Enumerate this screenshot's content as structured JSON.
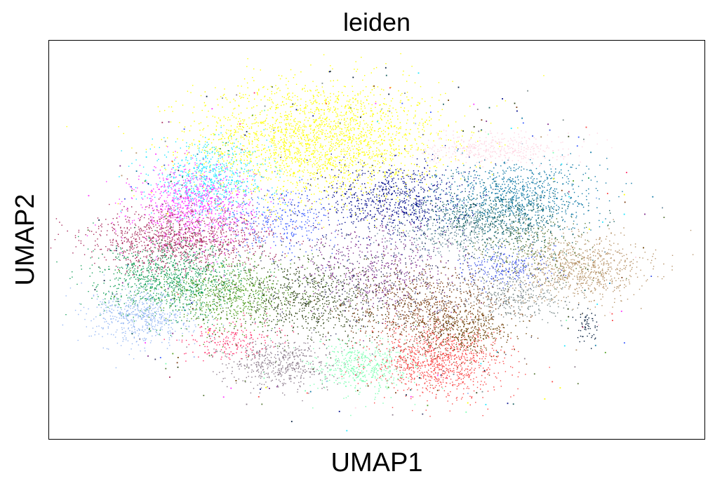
{
  "chart_data": {
    "type": "scatter",
    "title": "leiden",
    "xlabel": "UMAP1",
    "ylabel": "UMAP2",
    "xlim": [
      0,
      100
    ],
    "ylim": [
      0,
      100
    ],
    "grid": false,
    "legend": "none",
    "ticks": "none",
    "clusters": [
      {
        "color": "#ffff00",
        "center": [
          41.0,
          75.0
        ],
        "spread": [
          9.5,
          7.5
        ],
        "count": 2400
      },
      {
        "color": "#1ce6ff",
        "center": [
          24.5,
          65.0
        ],
        "spread": [
          4.5,
          4.5
        ],
        "count": 700
      },
      {
        "color": "#ff34ff",
        "center": [
          22.0,
          58.5
        ],
        "spread": [
          4.5,
          5.0
        ],
        "count": 900
      },
      {
        "color": "#3b5dff",
        "center": [
          35.0,
          55.0
        ],
        "spread": [
          4.5,
          4.0
        ],
        "count": 350
      },
      {
        "color": "#000a8a",
        "center": [
          53.0,
          60.0
        ],
        "spread": [
          5.5,
          5.0
        ],
        "count": 800
      },
      {
        "color": "#0e78a5",
        "center": [
          71.0,
          61.0
        ],
        "spread": [
          6.0,
          4.5
        ],
        "count": 900
      },
      {
        "color": "#135d5d",
        "center": [
          68.0,
          55.0
        ],
        "spread": [
          5.5,
          3.5
        ],
        "count": 600
      },
      {
        "color": "#ffd5e2",
        "center": [
          68.0,
          73.0
        ],
        "spread": [
          5.5,
          2.0
        ],
        "count": 400
      },
      {
        "color": "#a6285a",
        "center": [
          20.0,
          50.0
        ],
        "spread": [
          7.0,
          4.0
        ],
        "count": 1200
      },
      {
        "color": "#16a05a",
        "center": [
          18.5,
          40.0
        ],
        "spread": [
          5.5,
          4.5
        ],
        "count": 1000
      },
      {
        "color": "#98b9f4",
        "center": [
          14.5,
          31.0
        ],
        "spread": [
          4.0,
          3.5
        ],
        "count": 600
      },
      {
        "color": "#4e9c1c",
        "center": [
          28.0,
          36.0
        ],
        "spread": [
          5.0,
          4.5
        ],
        "count": 700
      },
      {
        "color": "#2b4010",
        "center": [
          40.0,
          35.0
        ],
        "spread": [
          6.0,
          5.0
        ],
        "count": 700
      },
      {
        "color": "#ff2e6a",
        "center": [
          27.5,
          25.0
        ],
        "spread": [
          3.5,
          2.5
        ],
        "count": 200
      },
      {
        "color": "#8a7a8a",
        "center": [
          35.5,
          19.0
        ],
        "spread": [
          4.0,
          3.0
        ],
        "count": 500
      },
      {
        "color": "#7dffb2",
        "center": [
          47.5,
          18.0
        ],
        "spread": [
          4.0,
          3.5
        ],
        "count": 500
      },
      {
        "color": "#fa4848",
        "center": [
          59.5,
          19.5
        ],
        "spread": [
          5.0,
          4.5
        ],
        "count": 1000
      },
      {
        "color": "#7a3b10",
        "center": [
          58.0,
          32.5
        ],
        "spread": [
          6.0,
          5.0
        ],
        "count": 900
      },
      {
        "color": "#6a4000",
        "center": [
          63.5,
          27.0
        ],
        "spread": [
          3.5,
          3.0
        ],
        "count": 300
      },
      {
        "color": "#7a8a8a",
        "center": [
          71.0,
          36.0
        ],
        "spread": [
          4.0,
          3.0
        ],
        "count": 350
      },
      {
        "color": "#3a51e6",
        "center": [
          70.0,
          43.5
        ],
        "spread": [
          3.5,
          2.5
        ],
        "count": 250
      },
      {
        "color": "#b7946a",
        "center": [
          81.0,
          43.0
        ],
        "spread": [
          5.0,
          4.0
        ],
        "count": 800
      },
      {
        "color": "#5a7a3a",
        "center": [
          73.5,
          48.0
        ],
        "spread": [
          5.0,
          4.0
        ],
        "count": 250
      },
      {
        "color": "#6f8fa0",
        "center": [
          60.0,
          51.0
        ],
        "spread": [
          4.0,
          3.0
        ],
        "count": 250
      },
      {
        "color": "#7f2a8a",
        "center": [
          49.5,
          43.5
        ],
        "spread": [
          6.0,
          6.0
        ],
        "count": 450
      },
      {
        "color": "#3c3c6a",
        "center": [
          50.0,
          40.0
        ],
        "spread": [
          10.0,
          8.0
        ],
        "count": 400
      },
      {
        "color": "#001a3a",
        "center": [
          82.0,
          28.5
        ],
        "spread": [
          0.8,
          2.0
        ],
        "count": 60
      }
    ]
  }
}
